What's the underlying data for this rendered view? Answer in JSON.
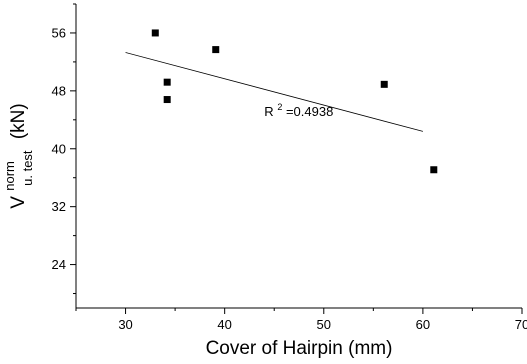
{
  "chart_data": {
    "type": "scatter",
    "xlabel": "Cover of Hairpin (mm)",
    "ylabel": {
      "base": "V",
      "superscript": "norm",
      "subscript": "u. test",
      "unit": "(kN)"
    },
    "xlim": [
      25,
      70
    ],
    "ylim": [
      18,
      60
    ],
    "xticks": [
      30,
      40,
      50,
      60,
      70
    ],
    "yticks": [
      24,
      32,
      40,
      48,
      56
    ],
    "grid": false,
    "points": [
      {
        "x": 33,
        "y": 56
      },
      {
        "x": 34.2,
        "y": 49.2
      },
      {
        "x": 34.2,
        "y": 46.8
      },
      {
        "x": 39.1,
        "y": 53.7
      },
      {
        "x": 56.1,
        "y": 48.9
      },
      {
        "x": 61.1,
        "y": 37.1
      }
    ],
    "trendline": {
      "x": [
        30,
        60
      ],
      "y": [
        53.3,
        42.4
      ]
    },
    "annotation": {
      "base": "R",
      "superscript": "2",
      "text": "=0.4938",
      "x": 44,
      "y": 44.5
    }
  }
}
